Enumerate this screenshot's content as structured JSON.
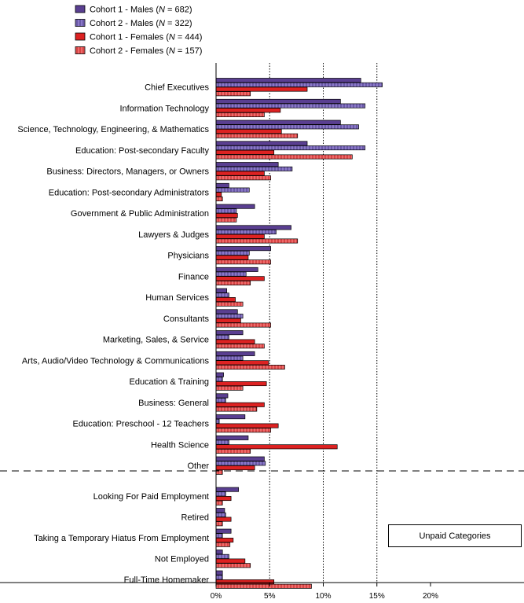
{
  "chart_data": {
    "type": "bar",
    "orientation": "horizontal",
    "legend": [
      {
        "prefix": "Cohort 1 - Males (",
        "n_symbol": "N",
        "suffix": " = 682)",
        "color": "#5a3f91",
        "pattern": "solid"
      },
      {
        "prefix": "Cohort 2 - Males (",
        "n_symbol": "N",
        "suffix": " = 322)",
        "color": "#8a78c8",
        "pattern": "hatch"
      },
      {
        "prefix": "Cohort 1 - Females (",
        "n_symbol": "N",
        "suffix": " = 444)",
        "color": "#dd2222",
        "pattern": "solid"
      },
      {
        "prefix": "Cohort 2 - Females (",
        "n_symbol": "N",
        "suffix": " = 157)",
        "color": "#ee5555",
        "pattern": "hatch"
      }
    ],
    "legend_position": "top-left",
    "categories": [
      "Chief Executives",
      "Information Technology",
      "Science, Technology, Engineering, & Mathematics",
      "Education: Post-secondary Faculty",
      "Business: Directors, Managers, or Owners",
      "Education: Post-secondary Administrators",
      "Government & Public Administration",
      "Lawyers & Judges",
      "Physicians",
      "Finance",
      "Human Services",
      "Consultants",
      "Marketing, Sales, & Service",
      "Arts, Audio/Video Technology & Communications",
      "Education & Training",
      "Business: General",
      "Education: Preschool - 12 Teachers",
      "Health Science",
      "Other",
      "Looking For Paid Employment",
      "Retired",
      "Taking a Temporary Hiatus From Employment",
      "Not Employed",
      "Full-Time Homemaker"
    ],
    "series": [
      {
        "name": "Cohort 1 - Males (N = 682)",
        "values": [
          13.5,
          11.6,
          11.6,
          8.5,
          5.8,
          1.2,
          3.6,
          7.0,
          5.1,
          3.9,
          1.0,
          2.0,
          2.5,
          3.6,
          0.7,
          1.1,
          2.7,
          3.0,
          4.5,
          2.1,
          0.8,
          1.4,
          0.6,
          0.6
        ]
      },
      {
        "name": "Cohort 2 - Males (N = 322)",
        "values": [
          15.5,
          13.9,
          13.3,
          13.9,
          7.1,
          3.1,
          1.9,
          5.6,
          3.1,
          2.8,
          1.2,
          2.5,
          1.2,
          2.5,
          0.6,
          0.9,
          0.3,
          1.2,
          4.6,
          0.9,
          0.9,
          0.6,
          1.2,
          0.6
        ]
      },
      {
        "name": "Cohort 1 - Females (N = 444)",
        "values": [
          8.5,
          6.0,
          6.1,
          5.4,
          4.5,
          0.5,
          2.0,
          4.5,
          3.0,
          4.5,
          1.8,
          2.3,
          3.6,
          4.9,
          4.7,
          4.5,
          5.8,
          11.3,
          3.6,
          1.4,
          1.4,
          1.6,
          2.7,
          5.4
        ]
      },
      {
        "name": "Cohort 2 - Females (N = 157)",
        "values": [
          3.2,
          4.5,
          7.6,
          12.7,
          5.1,
          0.6,
          1.9,
          7.6,
          5.1,
          3.2,
          2.5,
          5.1,
          4.5,
          6.4,
          2.5,
          3.8,
          5.1,
          3.2,
          0.6,
          0.6,
          0.6,
          1.3,
          3.2,
          8.9
        ]
      }
    ],
    "xlim": [
      0,
      20
    ],
    "x_ticks": [
      "0%",
      "5%",
      "10%",
      "15%",
      "20%"
    ],
    "x_tick_values": [
      0,
      5,
      10,
      15,
      20
    ],
    "reference_lines": [
      5,
      10,
      15
    ],
    "separator_after_index": 18,
    "annotation": "Unpaid Categories"
  }
}
